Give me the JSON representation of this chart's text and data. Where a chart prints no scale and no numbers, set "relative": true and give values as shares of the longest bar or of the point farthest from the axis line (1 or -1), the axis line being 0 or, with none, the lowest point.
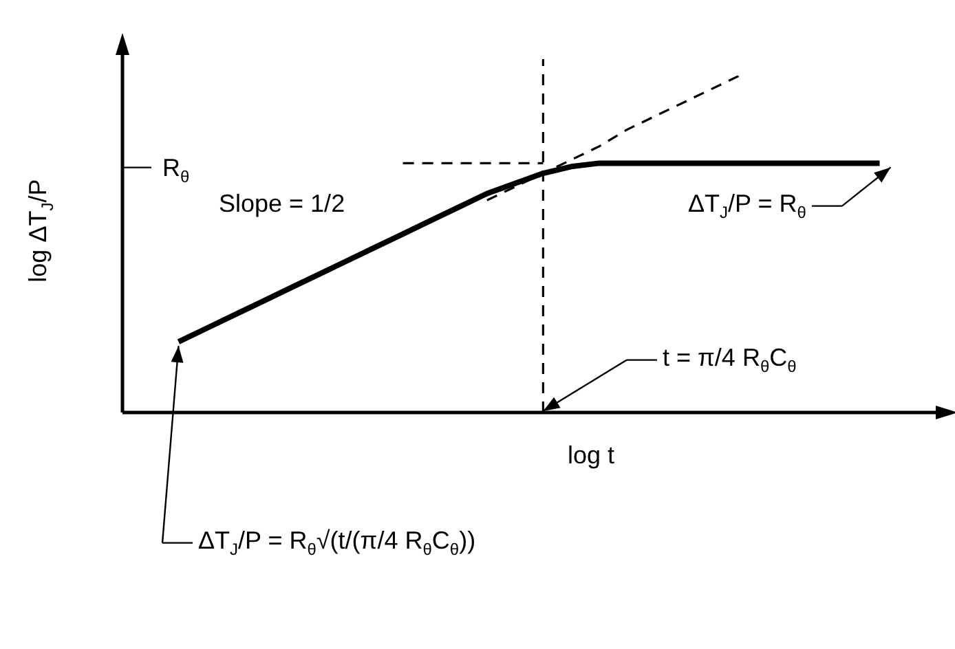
{
  "chart_data": {
    "type": "line",
    "relative": true,
    "xlabel": "log t",
    "ylabel": "log ΔT$_{J}$/P",
    "marker": "none",
    "categories": [
      null,
      null,
      null,
      null,
      null,
      null,
      null,
      null,
      null,
      null,
      null,
      null,
      null,
      null,
      null,
      null,
      null,
      null,
      null,
      null,
      null,
      null,
      null,
      null,
      null,
      null,
      null,
      null,
      null,
      null
    ],
    "series": [
      {
        "color": "#000000",
        "values": [
          null,
          null,
          0.21,
          0.25,
          0.29,
          0.33,
          0.37,
          0.41,
          0.45,
          0.49,
          0.53,
          0.57,
          0.61,
          0.65,
          0.68,
          0.71,
          0.73,
          0.74,
          0.74,
          0.74,
          0.74,
          0.74,
          0.74,
          0.74,
          0.74,
          0.74,
          0.74,
          0.74,
          null,
          null
        ]
      },
      {
        "color": "#000000",
        "line_style": "dashed",
        "values": [
          null,
          null,
          null,
          null,
          null,
          null,
          null,
          null,
          null,
          null,
          null,
          null,
          null,
          0.63,
          0.67,
          0.71,
          0.75,
          0.79,
          0.84,
          0.88,
          0.92,
          0.96,
          1.0,
          null,
          null,
          null,
          null,
          null,
          null,
          null
        ]
      },
      {
        "color": "#000000",
        "line_style": "dashed",
        "values": [
          null,
          null,
          null,
          null,
          null,
          null,
          null,
          null,
          null,
          null,
          0.74,
          0.74,
          0.74,
          0.74,
          0.74,
          0.74,
          null,
          null,
          null,
          null,
          null,
          null,
          null,
          null,
          null,
          null,
          null,
          null,
          null,
          null
        ]
      }
    ],
    "annotations": [
      "Slope = 1/2",
      "ΔT$_{J}$/P = R$_{θ}$",
      "t = π/4 R$_{θ}$C$_{θ}$",
      "ΔT$_{J}$/P = R$_{θ}$√(t/(π/4 R$_{θ}$C$_{θ}$))",
      "R$_{θ}$"
    ]
  }
}
